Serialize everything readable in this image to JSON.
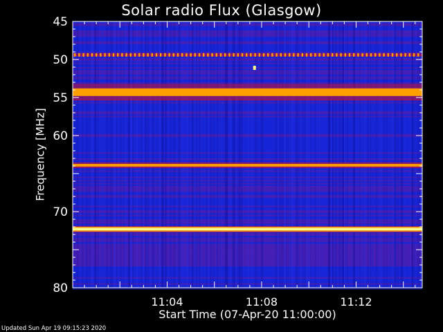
{
  "chart_data": {
    "type": "heatmap",
    "title": "Solar radio Flux (Glasgow)",
    "xlabel": "Start Time (07-Apr-20 11:00:00)",
    "ylabel": "Frequency [MHz]",
    "footer": "Updated Sun Apr 19 09:15:23 2020",
    "x_range_minutes": [
      0,
      14.8
    ],
    "x_ticks": [
      {
        "minute": 4,
        "label": "11:04"
      },
      {
        "minute": 8,
        "label": "11:08"
      },
      {
        "minute": 12,
        "label": "11:12"
      }
    ],
    "y_range_mhz": [
      45,
      80
    ],
    "y_axis_inverted": true,
    "y_ticks": [
      {
        "value": 45,
        "label": "45"
      },
      {
        "value": 50,
        "label": "50"
      },
      {
        "value": 55,
        "label": "55"
      },
      {
        "value": 60,
        "label": "60"
      },
      {
        "value": 70,
        "label": "70"
      },
      {
        "value": 80,
        "label": "80"
      }
    ],
    "intensity_colormap": [
      "#0000a0",
      "#1a2ae0",
      "#6a1fa8",
      "#c0103a",
      "#ff2000",
      "#ffa000",
      "#ffff90"
    ],
    "features": [
      {
        "kind": "band",
        "center_mhz": 54.3,
        "width_mhz": 1.0,
        "intensity": 0.78
      },
      {
        "kind": "band",
        "center_mhz": 63.9,
        "width_mhz": 0.35,
        "intensity": 0.8
      },
      {
        "kind": "band",
        "center_mhz": 72.3,
        "width_mhz": 0.35,
        "intensity": 1.0
      },
      {
        "kind": "dotted_band",
        "center_mhz": 49.4,
        "intensity": 0.85
      },
      {
        "kind": "point",
        "minute": 7.7,
        "freq_mhz": 51.1,
        "intensity": 0.92
      }
    ]
  }
}
